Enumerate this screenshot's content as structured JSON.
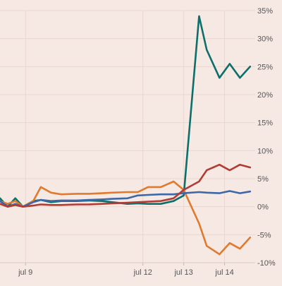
{
  "chart_data": {
    "type": "line",
    "title": "",
    "xlabel": "",
    "ylabel": "",
    "x_ticks": [
      "jul 9",
      "jul 12",
      "jul 13",
      "jul 14"
    ],
    "y_ticks": [
      "35%",
      "30%",
      "25%",
      "20%",
      "15%",
      "10%",
      "5%",
      "0%",
      "-5%",
      "-10%"
    ],
    "ylim": [
      -10,
      35
    ],
    "y_axis_position": "right",
    "grid": true,
    "legend": "none",
    "time_index_note": "x values are positions along the trading-time axis; tick labels mark day boundaries",
    "series": [
      {
        "color": "#0e6f6a",
        "x": [
          0.0,
          0.3,
          0.6,
          0.9,
          1.3,
          1.6,
          2.0,
          2.4,
          3.0,
          3.5,
          4.0,
          4.4,
          5.0,
          5.4,
          5.8,
          6.3,
          6.8,
          7.2,
          7.8,
          8.1,
          8.6,
          9.0,
          9.4,
          9.8
        ],
        "values": [
          1.5,
          0.0,
          1.5,
          0.0,
          1.0,
          1.2,
          0.8,
          1.0,
          1.0,
          1.1,
          1.0,
          0.8,
          0.5,
          0.6,
          0.5,
          0.5,
          1.0,
          2.0,
          34.0,
          28.0,
          23.0,
          25.5,
          23.0,
          25.0
        ]
      },
      {
        "color": "#e07a2e",
        "x": [
          0.0,
          0.3,
          0.6,
          0.9,
          1.3,
          1.6,
          2.0,
          2.4,
          3.0,
          3.5,
          4.0,
          4.4,
          5.0,
          5.4,
          5.8,
          6.3,
          6.8,
          7.2,
          7.8,
          8.1,
          8.6,
          9.0,
          9.4,
          9.8
        ],
        "values": [
          1.0,
          0.5,
          1.0,
          0.0,
          1.0,
          3.5,
          2.5,
          2.2,
          2.3,
          2.3,
          2.4,
          2.5,
          2.6,
          2.6,
          3.5,
          3.5,
          4.5,
          3.0,
          -3.0,
          -7.0,
          -8.5,
          -6.5,
          -7.5,
          -5.5
        ]
      },
      {
        "color": "#3c68a8",
        "x": [
          0.0,
          0.3,
          0.6,
          0.9,
          1.3,
          1.6,
          2.0,
          2.4,
          3.0,
          3.5,
          4.0,
          4.4,
          5.0,
          5.4,
          5.8,
          6.3,
          6.8,
          7.2,
          7.8,
          8.1,
          8.6,
          9.0,
          9.4,
          9.8
        ],
        "values": [
          1.0,
          0.0,
          0.5,
          0.0,
          0.8,
          1.2,
          1.0,
          1.1,
          1.1,
          1.2,
          1.3,
          1.4,
          1.5,
          2.0,
          2.1,
          2.2,
          2.2,
          2.4,
          2.6,
          2.5,
          2.4,
          2.8,
          2.4,
          2.7
        ]
      },
      {
        "color": "#b23b34",
        "x": [
          0.0,
          0.3,
          0.6,
          0.9,
          1.3,
          1.6,
          2.0,
          2.4,
          3.0,
          3.5,
          4.0,
          4.4,
          5.0,
          5.4,
          5.8,
          6.3,
          6.8,
          7.2,
          7.8,
          8.1,
          8.6,
          9.0,
          9.4,
          9.8
        ],
        "values": [
          0.5,
          0.0,
          0.3,
          0.0,
          0.2,
          0.4,
          0.3,
          0.3,
          0.4,
          0.4,
          0.5,
          0.6,
          0.7,
          0.8,
          0.9,
          1.0,
          1.5,
          3.0,
          4.5,
          6.5,
          7.5,
          6.5,
          7.5,
          7.0
        ]
      }
    ]
  }
}
